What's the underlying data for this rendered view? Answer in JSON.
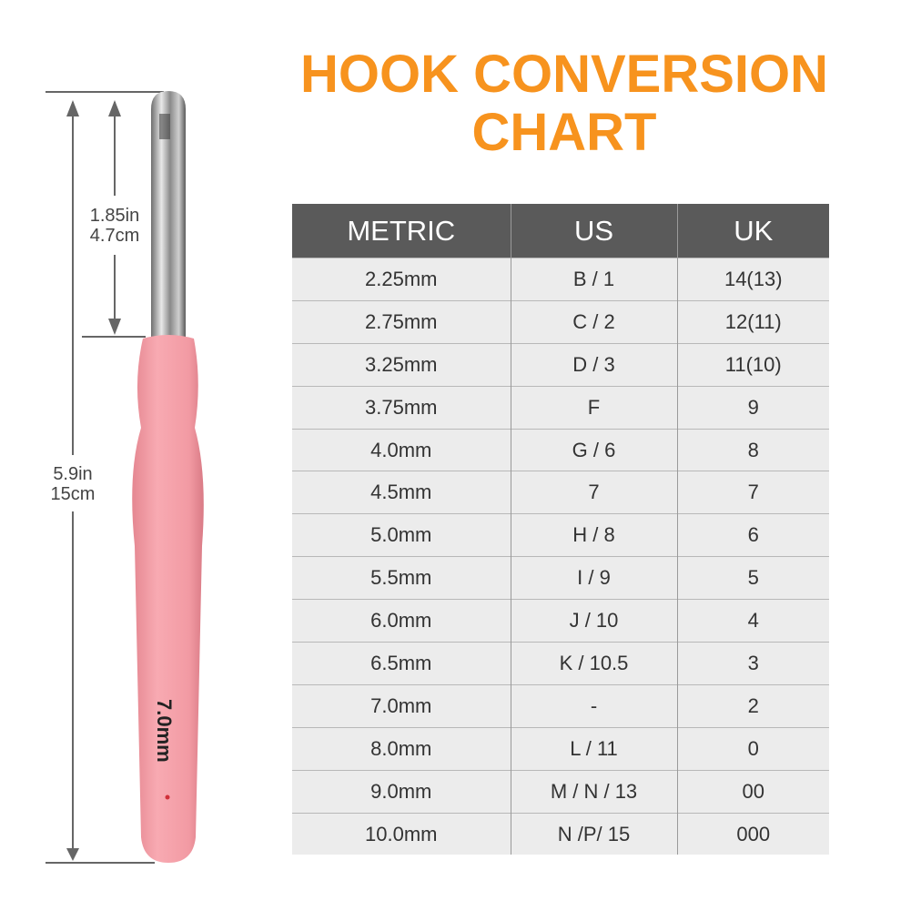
{
  "title": {
    "line1": "HOOK CONVERSION",
    "line2": "CHART"
  },
  "table": {
    "headers": [
      "METRIC",
      "US",
      "UK"
    ],
    "rows": [
      [
        "2.25mm",
        "B / 1",
        "14(13)"
      ],
      [
        "2.75mm",
        "C / 2",
        "12(11)"
      ],
      [
        "3.25mm",
        "D / 3",
        "11(10)"
      ],
      [
        "3.75mm",
        "F",
        "9"
      ],
      [
        "4.0mm",
        "G / 6",
        "8"
      ],
      [
        "4.5mm",
        "7",
        "7"
      ],
      [
        "5.0mm",
        "H / 8",
        "6"
      ],
      [
        "5.5mm",
        "I / 9",
        "5"
      ],
      [
        "6.0mm",
        "J / 10",
        "4"
      ],
      [
        "6.5mm",
        "K / 10.5",
        "3"
      ],
      [
        "7.0mm",
        "-",
        "2"
      ],
      [
        "8.0mm",
        "L / 11",
        "0"
      ],
      [
        "9.0mm",
        "M / N / 13",
        "00"
      ],
      [
        "10.0mm",
        "N /P/ 15",
        "000"
      ]
    ]
  },
  "dimensions": {
    "head_in": "1.85in",
    "head_cm": "4.7cm",
    "total_in": "5.9in",
    "total_cm": "15cm"
  },
  "hook": {
    "size_label": "7.0mm",
    "handle_color": "#f4a0a8",
    "accent_color": "#f7931e"
  }
}
